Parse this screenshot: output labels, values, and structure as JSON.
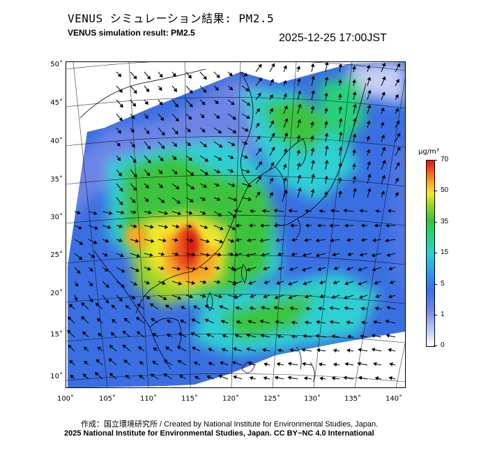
{
  "header": {
    "title_jp": "VENUS シミュレーション結果: PM2.5",
    "title_en": "VENUS simulation result: PM2.5",
    "timestamp": "2025-12-25 17:00JST"
  },
  "map": {
    "lat_labels": [
      "50˚",
      "45˚",
      "40˚",
      "35˚",
      "30˚",
      "25˚",
      "20˚",
      "15˚",
      "10˚"
    ],
    "lon_labels": [
      "100˚",
      "105˚",
      "110˚",
      "115˚",
      "120˚",
      "125˚",
      "130˚",
      "135˚",
      "140˚"
    ],
    "field": "PM2.5 concentration with surface wind vectors",
    "hotspot_region": "South China (approx. 22–27˚N, 110–118˚E)"
  },
  "colorbar": {
    "unit": "μg/m³",
    "ticks": [
      "70",
      "50",
      "35",
      "15",
      "5",
      "1",
      "0"
    ],
    "colors": [
      "#ffffff",
      "#c7cdf4",
      "#3a6fe2",
      "#2ecfd3",
      "#27d17a",
      "#9ad22a",
      "#f3e82c",
      "#ef5a1e",
      "#d81d16"
    ]
  },
  "footer": {
    "credit_jp": "作成：国立環境研究所 / Created by National Institute for Environmental Studies, Japan.",
    "credit_en": "2025 National Institute for Environmental Studies, Japan. CC BY−NC 4.0 International"
  }
}
